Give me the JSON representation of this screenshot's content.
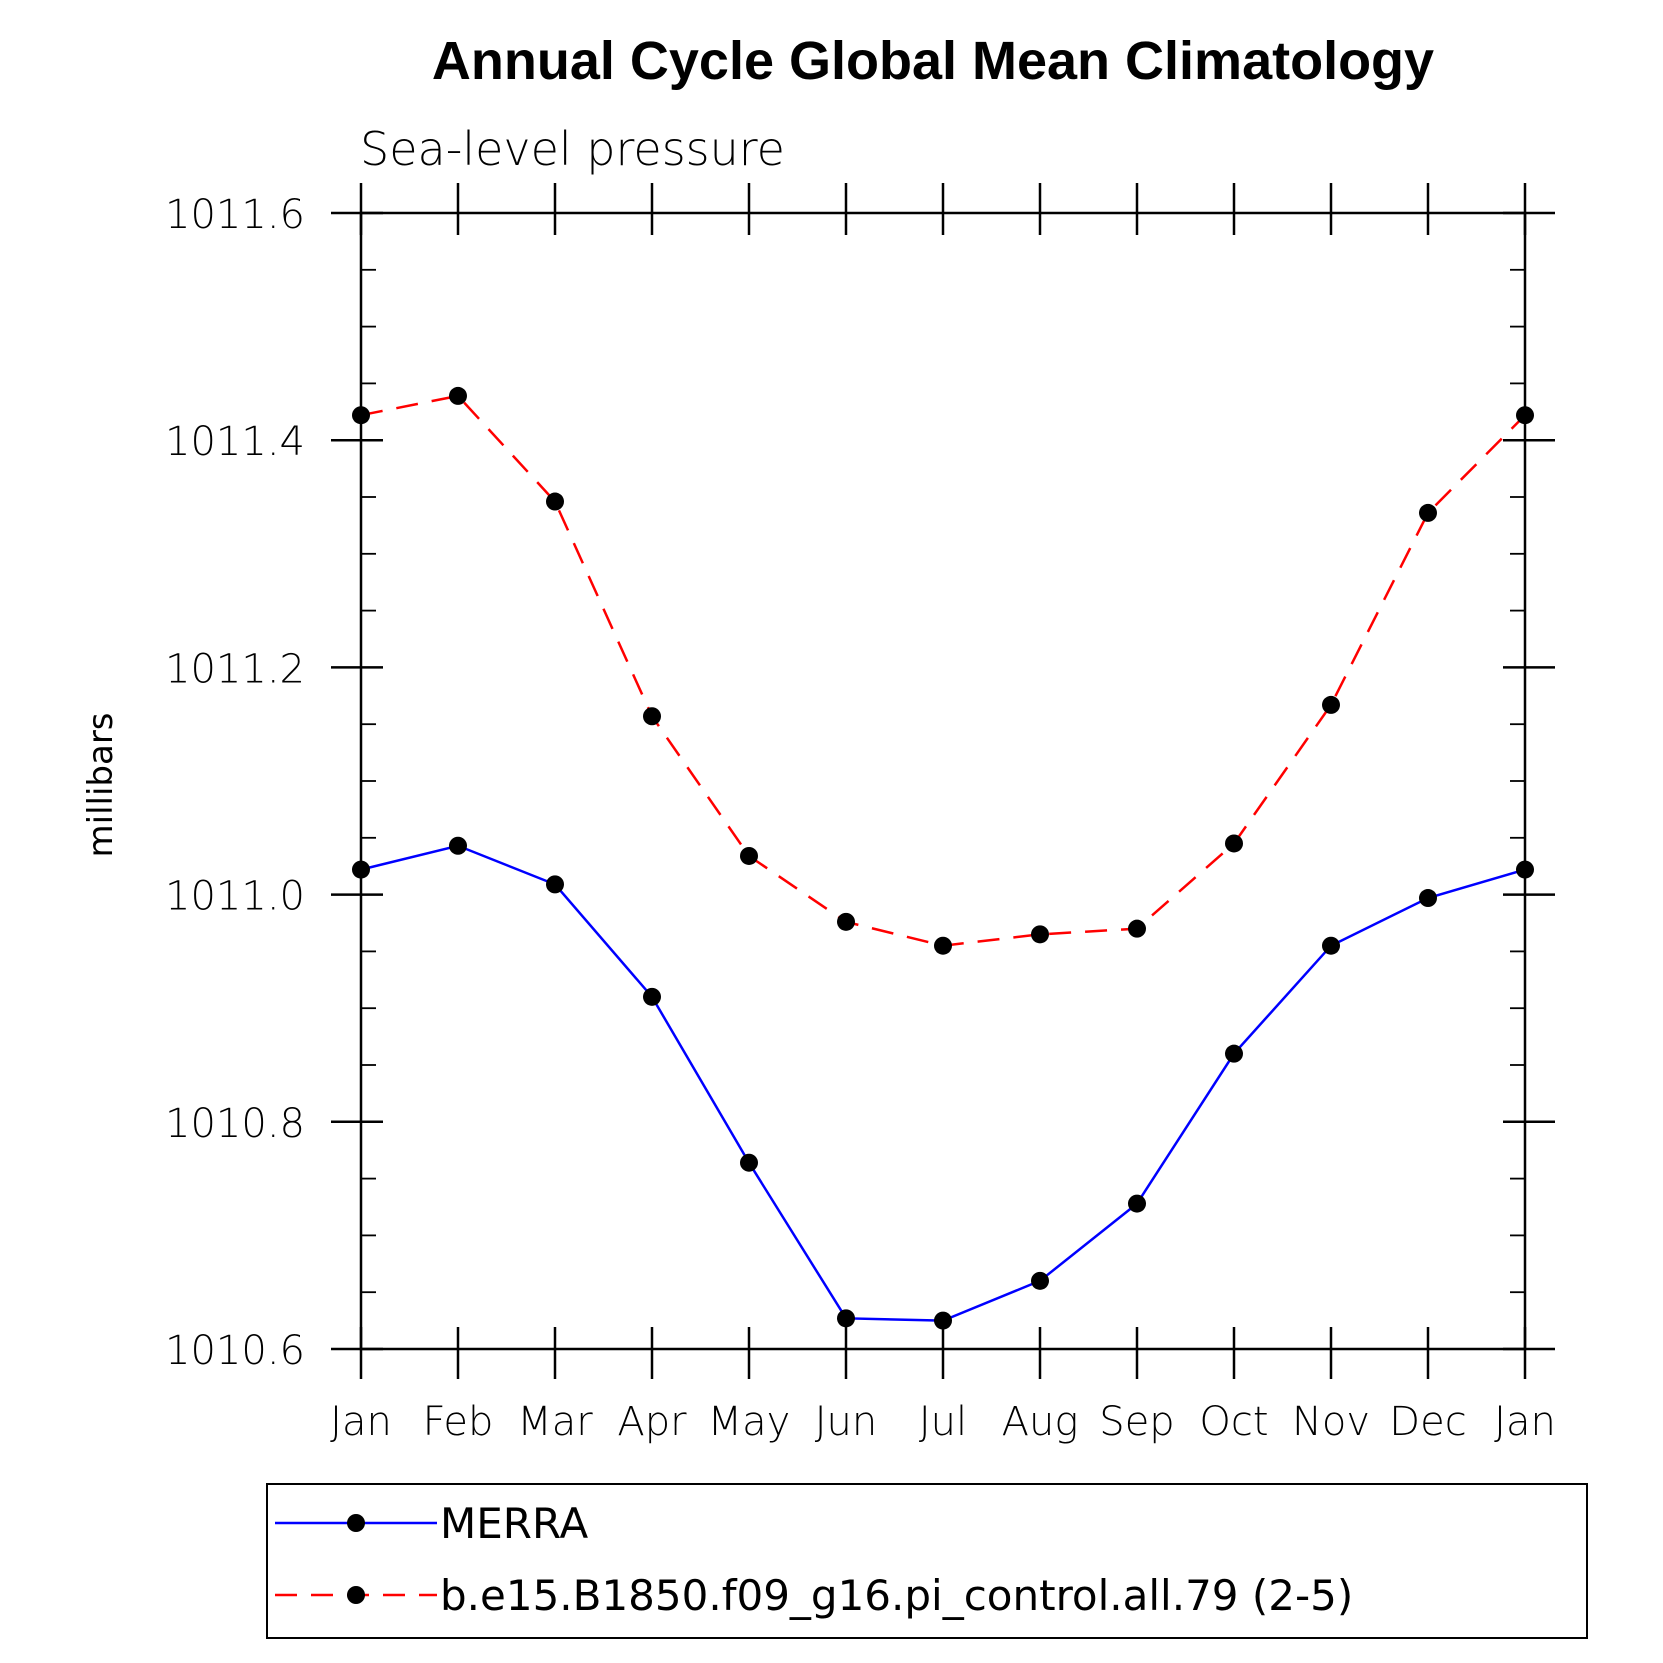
{
  "chart_data": {
    "type": "line",
    "title": "Annual Cycle Global Mean Climatology",
    "subtitle": "Sea-level pressure",
    "xlabel": "",
    "ylabel": "millibars",
    "categories": [
      "Jan",
      "Feb",
      "Mar",
      "Apr",
      "May",
      "Jun",
      "Jul",
      "Aug",
      "Sep",
      "Oct",
      "Nov",
      "Dec",
      "Jan"
    ],
    "ylim": [
      1010.6,
      1011.6
    ],
    "yticks": [
      "1010.6",
      "1010.8",
      "1011.0",
      "1011.2",
      "1011.4",
      "1011.6"
    ],
    "grid": false,
    "legend_position": "bottom",
    "series": [
      {
        "name": "MERRA",
        "color": "#0000ff",
        "line_style": "solid",
        "marker": "filled-circle",
        "values": [
          1011.022,
          1011.043,
          1011.009,
          1010.91,
          1010.764,
          1010.627,
          1010.625,
          1010.66,
          1010.728,
          1010.86,
          1010.955,
          1010.997,
          1011.022
        ]
      },
      {
        "name": "b.e15.B1850.f09_g16.pi_control.all.79 (2-5)",
        "color": "#ff0000",
        "line_style": "dashed",
        "marker": "filled-circle",
        "values": [
          1011.422,
          1011.439,
          1011.346,
          1011.157,
          1011.034,
          1010.976,
          1010.955,
          1010.965,
          1010.97,
          1011.045,
          1011.167,
          1011.336,
          1011.422
        ]
      }
    ]
  }
}
